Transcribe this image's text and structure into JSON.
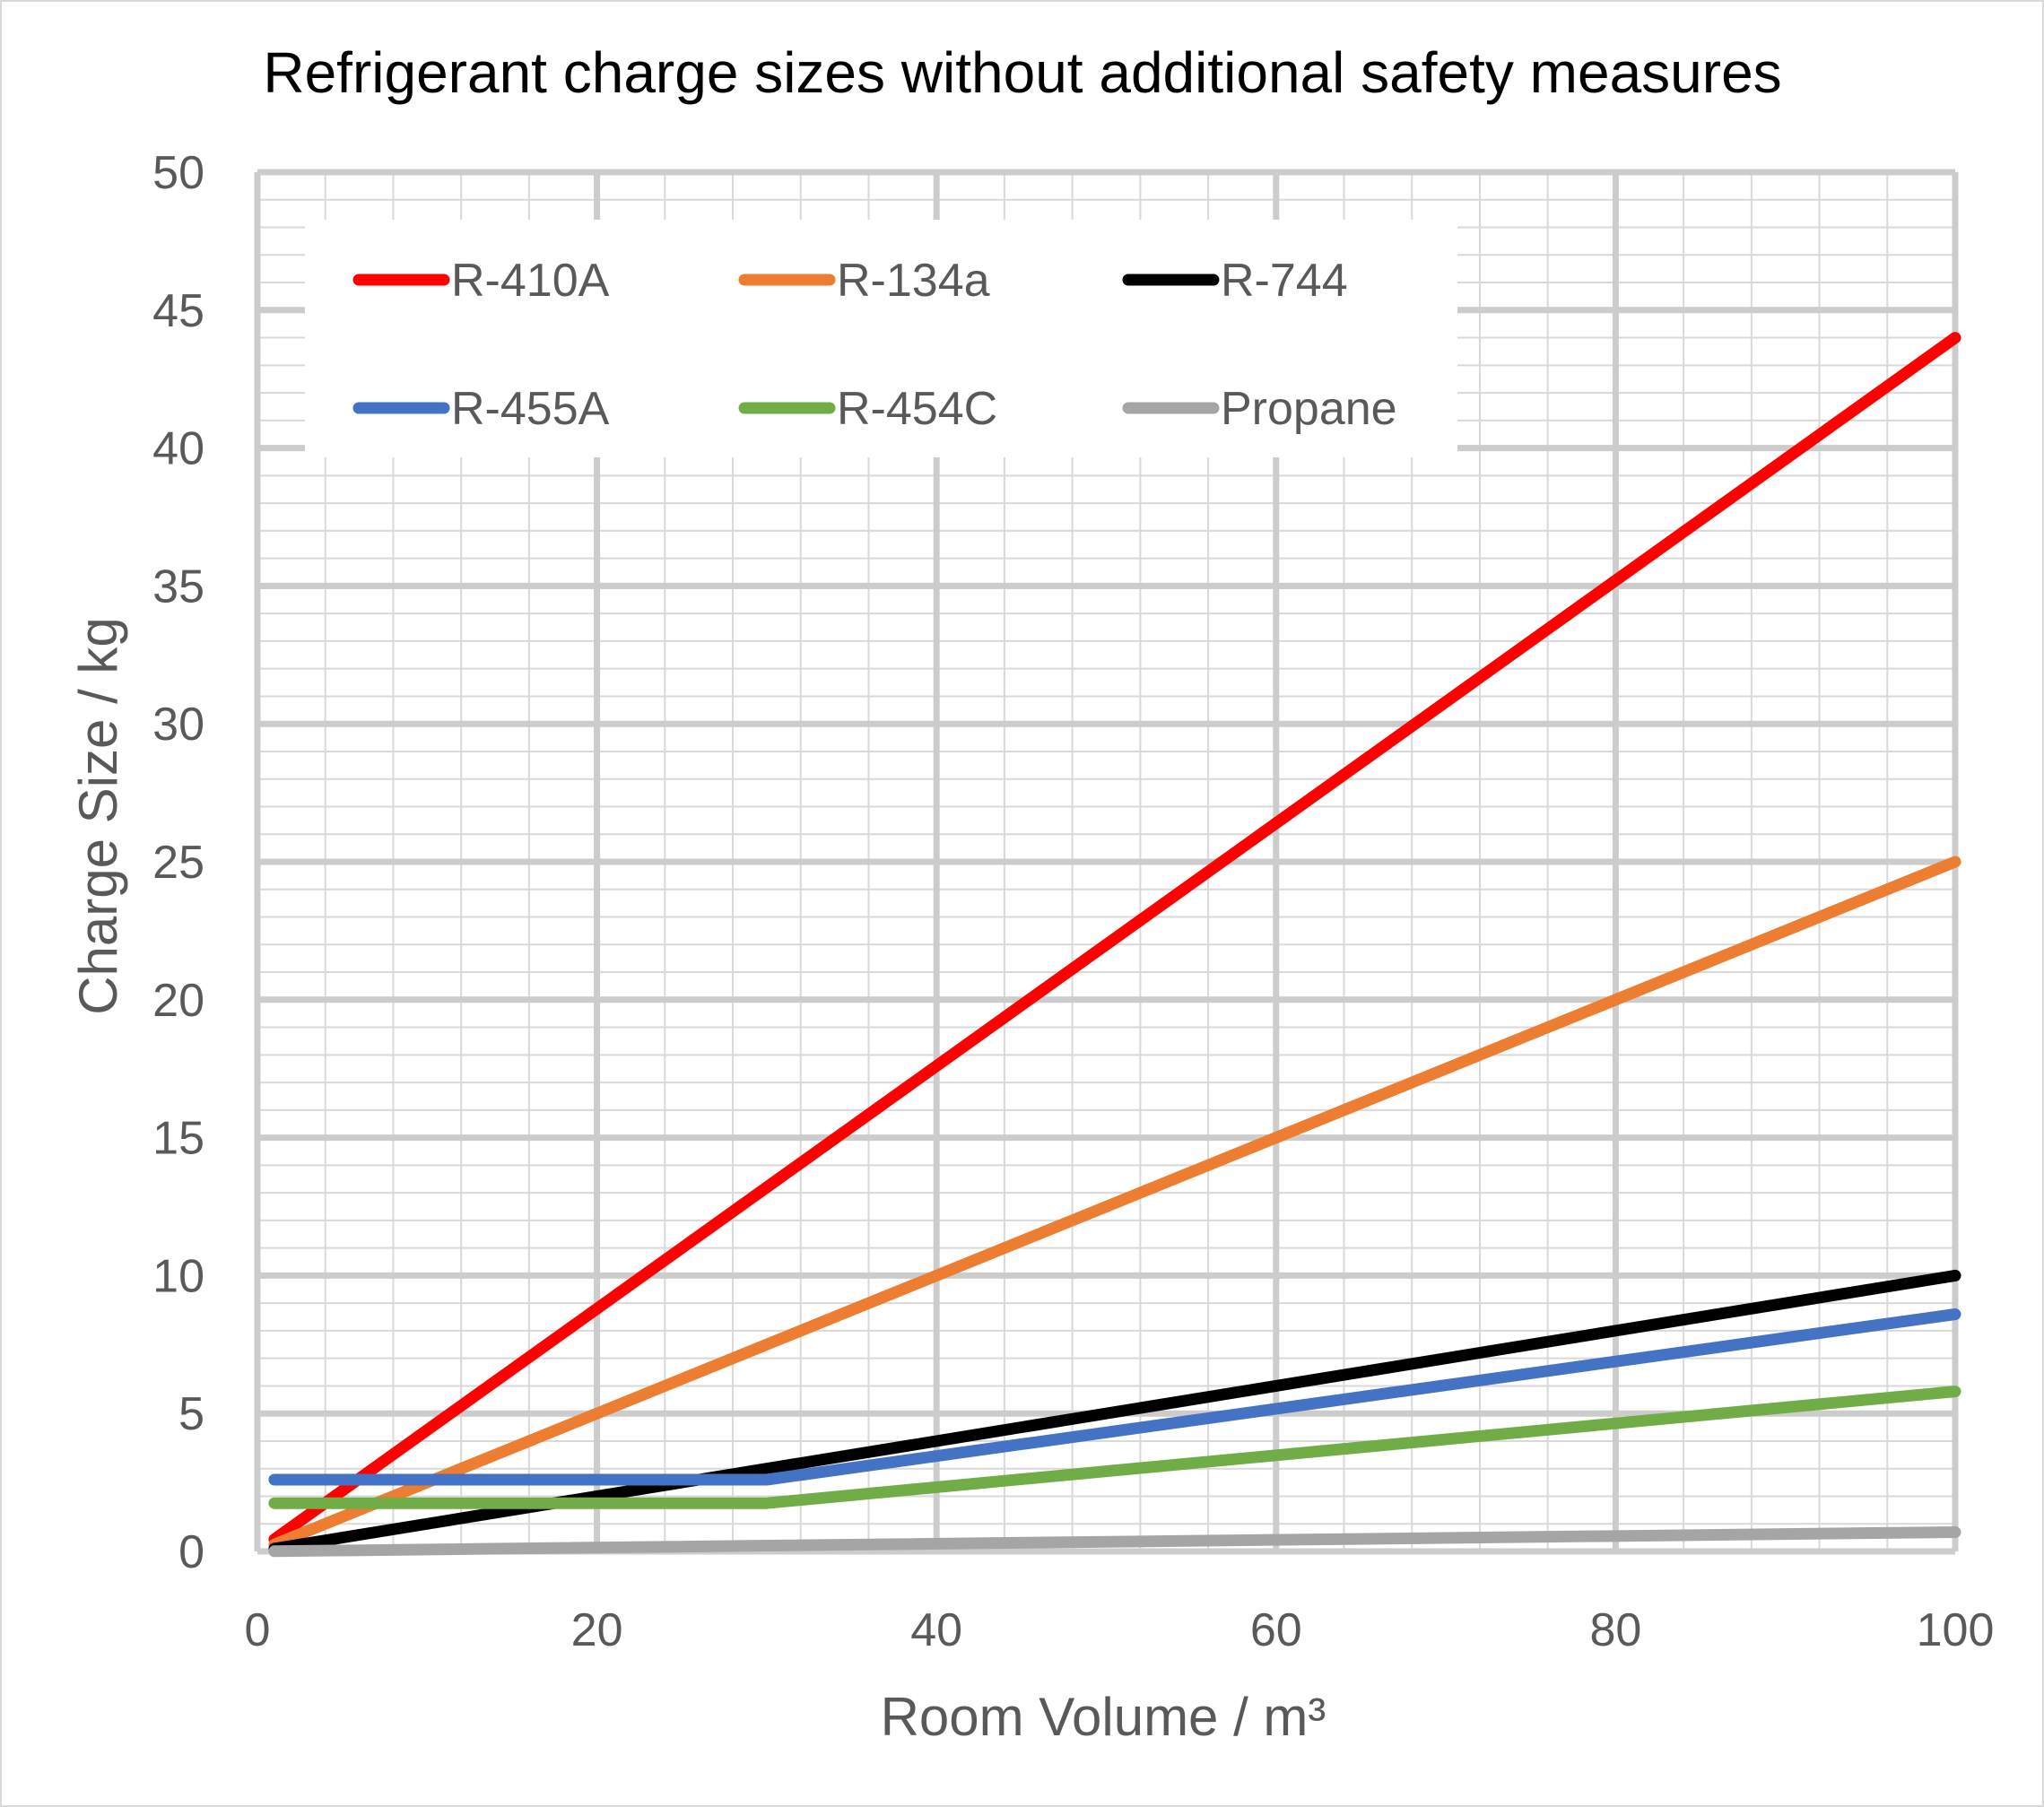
{
  "chart_data": {
    "type": "line",
    "title": "Refrigerant charge sizes without additional safety measures",
    "xlabel": "Room Volume / m³",
    "ylabel": "Charge Size / kg",
    "xlim": [
      0,
      100
    ],
    "ylim": [
      0,
      50
    ],
    "x_ticks": [
      "0",
      "20",
      "40",
      "60",
      "80",
      "100"
    ],
    "y_ticks": [
      "0",
      "5",
      "10",
      "15",
      "20",
      "25",
      "30",
      "35",
      "40",
      "45",
      "50"
    ],
    "grid": true,
    "legend_position": "top-left",
    "series": [
      {
        "name": "R-410A",
        "color": "#ff0000",
        "x": [
          1,
          100
        ],
        "y": [
          0.44,
          44
        ]
      },
      {
        "name": "R-134a",
        "color": "#ed7d31",
        "x": [
          1,
          100
        ],
        "y": [
          0.25,
          25
        ]
      },
      {
        "name": "R-744",
        "color": "#000000",
        "x": [
          1,
          100
        ],
        "y": [
          0.1,
          10
        ]
      },
      {
        "name": "R-455A",
        "color": "#4472c4",
        "x": [
          1,
          30,
          100
        ],
        "y": [
          2.6,
          2.6,
          8.6
        ]
      },
      {
        "name": "R-454C",
        "color": "#70ad47",
        "x": [
          1,
          30,
          100
        ],
        "y": [
          1.75,
          1.75,
          5.8
        ]
      },
      {
        "name": "Propane",
        "color": "#a5a5a5",
        "x": [
          1,
          100
        ],
        "y": [
          0.007,
          0.7
        ]
      }
    ]
  }
}
